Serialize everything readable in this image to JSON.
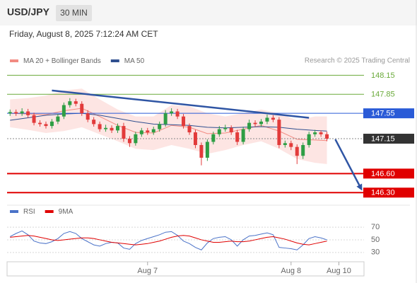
{
  "header": {
    "symbol": "USD/JPY",
    "interval": "30 MIN",
    "timestamp": "Friday, August 8, 2025 7:12:24 AM CET",
    "source": "Research © 2025 Trading Central"
  },
  "chart_data": [
    {
      "type": "candlestick",
      "x": [
        0,
        1,
        2,
        3,
        4,
        5,
        6,
        7,
        8,
        9,
        10,
        11,
        12,
        13,
        14,
        15,
        16,
        17,
        18,
        19,
        20,
        21,
        22,
        23,
        24,
        25,
        26,
        27,
        28,
        29,
        30,
        31,
        32,
        33,
        34,
        35,
        36,
        37,
        38,
        39,
        40,
        41,
        42,
        43,
        44,
        45,
        46,
        47,
        48,
        49,
        50,
        51,
        52,
        53
      ],
      "open": [
        147.55,
        147.57,
        147.55,
        147.58,
        147.52,
        147.4,
        147.38,
        147.35,
        147.42,
        147.5,
        147.68,
        147.74,
        147.7,
        147.55,
        147.45,
        147.38,
        147.3,
        147.32,
        147.28,
        147.35,
        147.15,
        147.08,
        147.22,
        147.28,
        147.25,
        147.3,
        147.38,
        147.55,
        147.58,
        147.5,
        147.35,
        147.25,
        147.05,
        146.85,
        147.1,
        147.22,
        147.3,
        147.32,
        147.25,
        147.1,
        147.3,
        147.4,
        147.38,
        147.42,
        147.48,
        147.45,
        147.05,
        147.08,
        147.02,
        146.88,
        147.05,
        147.22,
        147.25,
        147.22
      ],
      "high": [
        147.61,
        147.61,
        147.63,
        147.62,
        147.56,
        147.44,
        147.42,
        147.46,
        147.54,
        147.72,
        147.79,
        147.78,
        147.74,
        147.6,
        147.49,
        147.42,
        147.37,
        147.36,
        147.39,
        147.4,
        147.19,
        147.26,
        147.32,
        147.32,
        147.34,
        147.42,
        147.6,
        147.63,
        147.62,
        147.54,
        147.39,
        147.29,
        147.09,
        147.14,
        147.26,
        147.35,
        147.37,
        147.36,
        147.29,
        147.34,
        147.45,
        147.44,
        147.46,
        147.53,
        147.52,
        147.49,
        147.12,
        147.12,
        147.06,
        147.09,
        147.26,
        147.29,
        147.28,
        147.26
      ],
      "low": [
        147.51,
        147.51,
        147.51,
        147.48,
        147.36,
        147.34,
        147.31,
        147.31,
        147.38,
        147.46,
        147.64,
        147.66,
        147.51,
        147.41,
        147.34,
        147.26,
        147.26,
        147.24,
        147.24,
        147.1,
        147.02,
        147.04,
        147.18,
        147.21,
        147.21,
        147.26,
        147.34,
        147.51,
        147.46,
        147.31,
        147.21,
        147.0,
        146.73,
        146.8,
        147.06,
        147.18,
        147.26,
        147.21,
        147.05,
        147.06,
        147.26,
        147.34,
        147.34,
        147.38,
        147.41,
        147.0,
        147.01,
        146.97,
        146.75,
        146.83,
        147.01,
        147.18,
        147.18,
        147.11
      ],
      "close": [
        147.57,
        147.55,
        147.58,
        147.52,
        147.4,
        147.38,
        147.35,
        147.42,
        147.5,
        147.68,
        147.74,
        147.7,
        147.55,
        147.45,
        147.38,
        147.3,
        147.32,
        147.28,
        147.35,
        147.15,
        147.08,
        147.22,
        147.28,
        147.25,
        147.3,
        147.38,
        147.55,
        147.58,
        147.5,
        147.35,
        147.25,
        147.05,
        146.85,
        147.1,
        147.22,
        147.3,
        147.32,
        147.25,
        147.1,
        147.3,
        147.4,
        147.38,
        147.42,
        147.48,
        147.45,
        147.05,
        147.08,
        147.02,
        146.88,
        147.05,
        147.22,
        147.25,
        147.22,
        147.15
      ],
      "up_color": "#2e9e44",
      "down_color": "#e23b3b",
      "series": [
        {
          "name": "MA 20 + Bollinger Bands",
          "color": "#f28b82",
          "band_color": "#fbd3d0",
          "x": [
            0,
            3,
            6,
            9,
            12,
            15,
            18,
            21,
            24,
            27,
            30,
            33,
            36,
            39,
            42,
            45,
            48,
            51,
            53
          ],
          "values": [
            147.55,
            147.54,
            147.53,
            147.59,
            147.63,
            147.5,
            147.36,
            147.25,
            147.24,
            147.36,
            147.33,
            147.23,
            147.24,
            147.3,
            147.36,
            147.27,
            147.14,
            147.13,
            147.12
          ],
          "upper": [
            147.77,
            147.79,
            147.83,
            147.91,
            147.94,
            147.77,
            147.61,
            147.5,
            147.5,
            147.68,
            147.66,
            147.55,
            147.5,
            147.55,
            147.61,
            147.55,
            147.44,
            147.5,
            147.5
          ],
          "lower": [
            147.33,
            147.29,
            147.24,
            147.27,
            147.33,
            147.22,
            147.11,
            146.99,
            146.97,
            147.05,
            146.99,
            146.91,
            146.97,
            147.05,
            147.11,
            146.99,
            146.83,
            146.77,
            146.75
          ]
        },
        {
          "name": "MA 50",
          "color": "#2f4f8f",
          "x": [
            0,
            3,
            6,
            9,
            12,
            15,
            18,
            21,
            24,
            27,
            30,
            33,
            36,
            39,
            42,
            45,
            48,
            51,
            53
          ],
          "values": [
            147.44,
            147.48,
            147.52,
            147.54,
            147.55,
            147.52,
            147.47,
            147.42,
            147.38,
            147.37,
            147.36,
            147.33,
            147.32,
            147.33,
            147.34,
            147.33,
            147.3,
            147.28,
            147.27
          ]
        }
      ],
      "levels": [
        {
          "value": 148.15,
          "label": "148.15",
          "color": "#6aaa3a",
          "boxed": false,
          "width": 1,
          "dotted": false
        },
        {
          "value": 147.85,
          "label": "147.85",
          "color": "#6aaa3a",
          "boxed": false,
          "width": 1,
          "dotted": false
        },
        {
          "value": 147.55,
          "label": "147.55",
          "color": "#2a5bd7",
          "boxed": true,
          "width": 1,
          "dotted": false
        },
        {
          "value": 147.15,
          "label": "147.15",
          "color": "#333333",
          "boxed": true,
          "width": 1,
          "dotted": true
        },
        {
          "value": 146.6,
          "label": "146.60",
          "color": "#e00000",
          "boxed": true,
          "width": 2,
          "dotted": false
        },
        {
          "value": 146.3,
          "label": "146.30",
          "color": "#e00000",
          "boxed": true,
          "width": 2,
          "dotted": false
        }
      ],
      "trendline": {
        "x": [
          7,
          50
        ],
        "y": [
          147.91,
          147.48
        ],
        "color": "#2f55a4"
      },
      "arrow": {
        "x": [
          54.4,
          58.9
        ],
        "y": [
          147.14,
          146.33
        ],
        "color": "#2f55a4"
      },
      "xlim": [
        -0.5,
        59.2
      ],
      "ylim": [
        146.18,
        148.5
      ]
    },
    {
      "type": "line",
      "series": [
        {
          "name": "RSI",
          "color": "#4a72c8",
          "values": [
            55,
            60,
            64,
            58,
            48,
            45,
            44,
            47,
            52,
            60,
            63,
            60,
            52,
            47,
            42,
            40,
            44,
            46,
            45,
            37,
            35,
            44,
            49,
            52,
            55,
            58,
            62,
            63,
            57,
            48,
            44,
            38,
            34,
            45,
            52,
            54,
            55,
            50,
            40,
            50,
            56,
            57,
            59,
            61,
            58,
            38,
            37,
            36,
            34,
            42,
            52,
            55,
            53,
            50
          ]
        },
        {
          "name": "9MA",
          "color": "#e00000",
          "values": [
            54,
            55,
            56,
            57,
            56,
            54,
            52,
            50,
            49,
            50,
            51,
            52,
            53,
            53,
            52,
            50,
            48,
            46,
            45,
            44,
            43,
            42,
            43,
            44,
            46,
            48,
            51,
            54,
            56,
            57,
            56,
            53,
            50,
            48,
            46,
            46,
            47,
            48,
            47,
            47,
            48,
            50,
            52,
            54,
            55,
            53,
            51,
            48,
            45,
            43,
            42,
            44,
            46,
            48
          ]
        }
      ],
      "x": [
        0,
        1,
        2,
        3,
        4,
        5,
        6,
        7,
        8,
        9,
        10,
        11,
        12,
        13,
        14,
        15,
        16,
        17,
        18,
        19,
        20,
        21,
        22,
        23,
        24,
        25,
        26,
        27,
        28,
        29,
        30,
        31,
        32,
        33,
        34,
        35,
        36,
        37,
        38,
        39,
        40,
        41,
        42,
        43,
        44,
        45,
        46,
        47,
        48,
        49,
        50,
        51,
        52,
        53
      ],
      "xlim": [
        -0.5,
        59.2
      ],
      "ylim": [
        13,
        88
      ],
      "yticks": [
        70,
        50,
        30
      ],
      "xticks": [
        {
          "value": 23,
          "label": "Aug 7"
        },
        {
          "value": 47,
          "label": "Aug 8"
        },
        {
          "value": 55,
          "label": "Aug 10"
        }
      ]
    }
  ]
}
